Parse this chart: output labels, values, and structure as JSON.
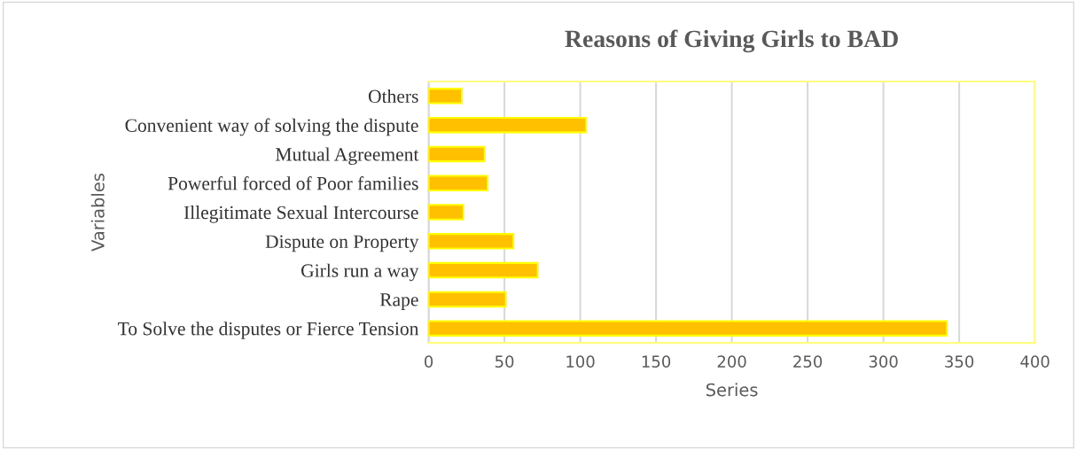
{
  "chart_data": {
    "type": "bar",
    "orientation": "horizontal",
    "title": "Reasons of Giving Girls to BAD",
    "xlabel": "Series",
    "ylabel": "Variables",
    "categories": [
      "Others",
      "Convenient way of solving the dispute",
      "Mutual Agreement",
      "Powerful forced of Poor families",
      "Illegitimate Sexual Intercourse",
      "Dispute on Property",
      "Girls run a way",
      "Rape",
      "To Solve the disputes or Fierce Tension"
    ],
    "values": [
      22,
      104,
      37,
      39,
      23,
      56,
      72,
      51,
      342
    ],
    "color": "#ffc000",
    "xlim": [
      0,
      400
    ],
    "xticks": [
      0,
      50,
      100,
      150,
      200,
      250,
      300,
      350,
      400
    ],
    "grid": "x",
    "legend": false
  }
}
